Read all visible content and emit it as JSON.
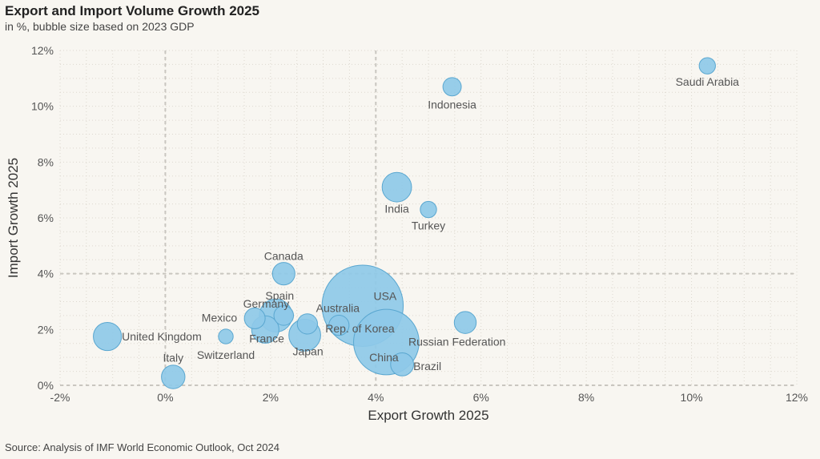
{
  "title": "Export and Import Volume Growth 2025",
  "subtitle": "in %, bubble size based on 2023 GDP",
  "source": "Source: Analysis of IMF World Economic Outlook, Oct 2024",
  "colors": {
    "bubble_fill": "#8ec9e8",
    "bubble_stroke": "#5aa7d0",
    "grid": "#ddd8cf",
    "reference_line": "#c9c6c0",
    "background": "#f8f6f1"
  },
  "chart_data": {
    "type": "scatter",
    "bubble": true,
    "xlabel": "Export Growth 2025",
    "ylabel": "Import Growth 2025",
    "xlim": [
      -2,
      12
    ],
    "ylim": [
      0,
      12
    ],
    "xticks": [
      "-2%",
      "0%",
      "2%",
      "4%",
      "6%",
      "8%",
      "10%",
      "12%"
    ],
    "yticks": [
      "0%",
      "2%",
      "4%",
      "6%",
      "8%",
      "10%",
      "12%"
    ],
    "xtick_values": [
      -2,
      0,
      2,
      4,
      6,
      8,
      10,
      12
    ],
    "ytick_values": [
      0,
      2,
      4,
      6,
      8,
      10,
      12
    ],
    "reference_lines": {
      "x": [
        0,
        4
      ],
      "y": [
        4
      ]
    },
    "grid": true,
    "points": [
      {
        "name": "Saudi Arabia",
        "x": 10.3,
        "y": 11.45,
        "size": 1.1
      },
      {
        "name": "Indonesia",
        "x": 5.45,
        "y": 10.7,
        "size": 1.4
      },
      {
        "name": "India",
        "x": 4.4,
        "y": 7.1,
        "size": 3.6
      },
      {
        "name": "Turkey",
        "x": 5.0,
        "y": 6.3,
        "size": 1.1
      },
      {
        "name": "Canada",
        "x": 2.25,
        "y": 4.0,
        "size": 2.1
      },
      {
        "name": "Spain",
        "x": 2.25,
        "y": 2.5,
        "size": 1.6
      },
      {
        "name": "Germany",
        "x": 2.1,
        "y": 2.5,
        "size": 4.5
      },
      {
        "name": "Mexico",
        "x": 1.7,
        "y": 2.4,
        "size": 1.8
      },
      {
        "name": "France",
        "x": 1.9,
        "y": 2.0,
        "size": 3.1
      },
      {
        "name": "Australia",
        "x": 2.7,
        "y": 2.2,
        "size": 1.7
      },
      {
        "name": "Japan",
        "x": 2.65,
        "y": 1.8,
        "size": 4.2
      },
      {
        "name": "Rep. of Korea",
        "x": 3.3,
        "y": 2.15,
        "size": 1.7
      },
      {
        "name": "USA",
        "x": 3.75,
        "y": 2.85,
        "size": 27.4
      },
      {
        "name": "China",
        "x": 4.2,
        "y": 1.55,
        "size": 17.8
      },
      {
        "name": "Russian Federation",
        "x": 5.7,
        "y": 2.25,
        "size": 2.0
      },
      {
        "name": "Brazil",
        "x": 4.5,
        "y": 0.75,
        "size": 2.2
      },
      {
        "name": "United Kingdom",
        "x": -1.1,
        "y": 1.75,
        "size": 3.3
      },
      {
        "name": "Switzerland",
        "x": 1.15,
        "y": 1.75,
        "size": 0.9
      },
      {
        "name": "Italy",
        "x": 0.15,
        "y": 0.3,
        "size": 2.3
      }
    ]
  }
}
